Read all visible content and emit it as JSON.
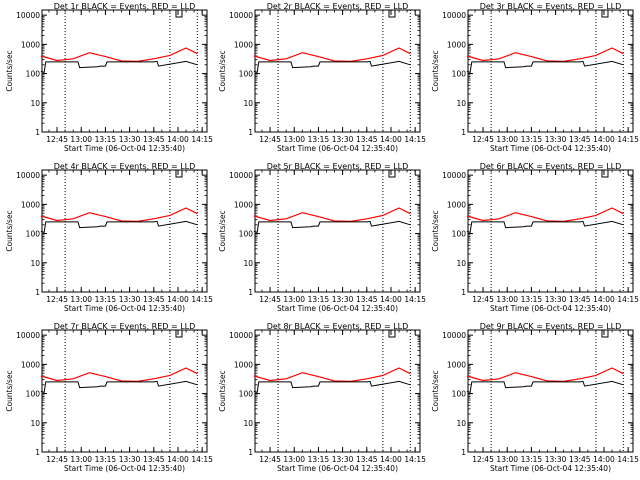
{
  "figure": {
    "panels": [
      {
        "title": "Det 1r BLACK = Events, RED = LLD",
        "xlabel": "Start Time (06-Oct-04 12:35:40)",
        "ylabel": "Counts/sec"
      },
      {
        "title": "Det 2r BLACK = Events, RED = LLD",
        "xlabel": "Start Time (06-Oct-04 12:35:40)",
        "ylabel": "Counts/sec"
      },
      {
        "title": "Det 3r BLACK = Events, RED = LLD",
        "xlabel": "Start Time (06-Oct-04 12:35:40)",
        "ylabel": "Counts/sec"
      },
      {
        "title": "Det 4r BLACK = Events, RED = LLD",
        "xlabel": "Start Time (06-Oct-04 12:35:40)",
        "ylabel": "Counts/sec"
      },
      {
        "title": "Det 5r BLACK = Events, RED = LLD",
        "xlabel": "Start Time (06-Oct-04 12:35:40)",
        "ylabel": "Counts/sec"
      },
      {
        "title": "Det 6r BLACK = Events, RED = LLD",
        "xlabel": "Start Time (06-Oct-04 12:35:40)",
        "ylabel": "Counts/sec"
      },
      {
        "title": "Det 7r BLACK = Events, RED = LLD",
        "xlabel": "Start Time (06-Oct-04 12:35:40)",
        "ylabel": "Counts/sec"
      },
      {
        "title": "Det 8r BLACK = Events, RED = LLD",
        "xlabel": "Start Time (06-Oct-04 12:35:40)",
        "ylabel": "Counts/sec"
      },
      {
        "title": "Det 9r BLACK = Events, RED = LLD",
        "xlabel": "Start Time (06-Oct-04 12:35:40)",
        "ylabel": "Counts/sec"
      }
    ]
  },
  "chart_data": {
    "type": "line",
    "grid": false,
    "yscale": "log",
    "ylim": [
      1,
      15000
    ],
    "yticks": [
      1,
      10,
      100,
      1000,
      10000
    ],
    "ytick_labels": [
      "1",
      "10",
      "100",
      "1000",
      "10000"
    ],
    "xlim": [
      "12:35:40",
      "14:18:00"
    ],
    "xticks": [
      "12:45",
      "13:00",
      "13:15",
      "13:30",
      "13:45",
      "14:00",
      "14:15"
    ],
    "vlines": [
      "12:50",
      "13:55",
      "14:12"
    ],
    "series_colors": {
      "events": "#000000",
      "lld": "#ff0000"
    },
    "lld_x": [
      "12:35",
      "12:45",
      "12:55",
      "13:05",
      "13:15",
      "13:25",
      "13:35",
      "13:45",
      "13:55",
      "14:05",
      "14:12"
    ],
    "lld_y": [
      400,
      280,
      320,
      520,
      380,
      270,
      260,
      320,
      420,
      750,
      480
    ],
    "events_x": [
      "12:35",
      "12:37",
      "12:38",
      "12:45",
      "12:55",
      "12:58",
      "12:59",
      "13:10",
      "13:12",
      "13:15",
      "13:16",
      "13:35",
      "13:40",
      "13:45",
      "13:47",
      "13:48",
      "14:05",
      "14:12"
    ],
    "events_y": [
      120,
      110,
      250,
      250,
      250,
      250,
      160,
      170,
      180,
      180,
      250,
      250,
      250,
      250,
      260,
      180,
      260,
      200
    ]
  }
}
